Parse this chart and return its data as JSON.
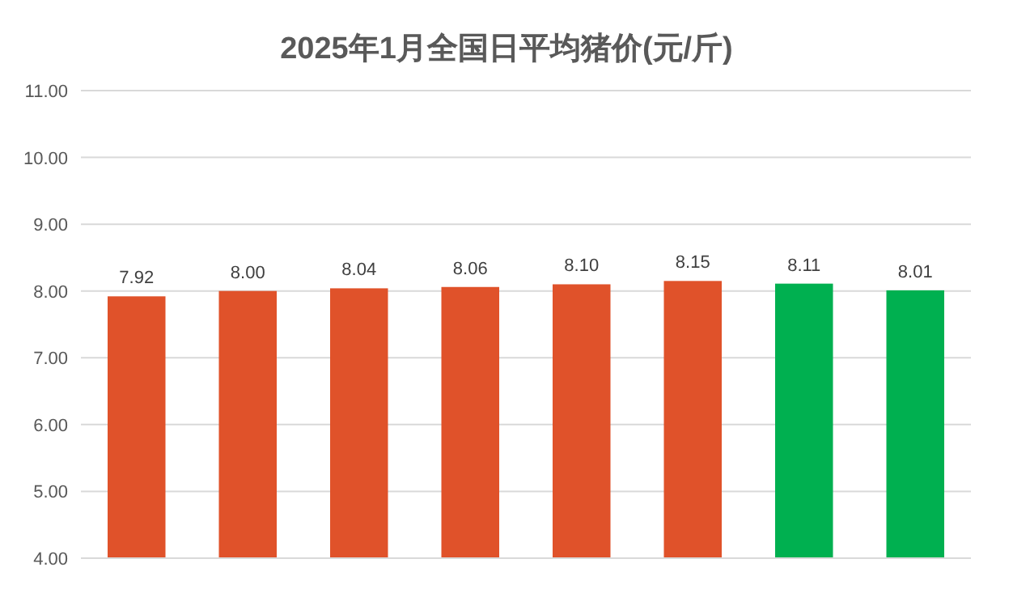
{
  "chart_data": {
    "type": "bar",
    "title": "2025年1月全国日平均猪价(元/斤)",
    "categories": [
      null,
      null,
      null,
      null,
      null,
      null,
      null,
      null
    ],
    "values": [
      7.92,
      8.0,
      8.04,
      8.06,
      8.1,
      8.15,
      8.11,
      8.01
    ],
    "colors": [
      "#e0522a",
      "#e0522a",
      "#e0522a",
      "#e0522a",
      "#e0522a",
      "#e0522a",
      "#00b050",
      "#00b050"
    ],
    "ylim": [
      4,
      11
    ],
    "yticks": [
      {
        "value": 4,
        "label": "4.00"
      },
      {
        "value": 5,
        "label": "5.00"
      },
      {
        "value": 6,
        "label": "6.00"
      },
      {
        "value": 7,
        "label": "7.00"
      },
      {
        "value": 8,
        "label": "8.00"
      },
      {
        "value": 9,
        "label": "9.00"
      },
      {
        "value": 10,
        "label": "10.00"
      },
      {
        "value": 11,
        "label": "11.00"
      }
    ],
    "value_labels": [
      "7.92",
      "8.00",
      "8.04",
      "8.06",
      "8.10",
      "8.15",
      "8.11",
      "8.01"
    ],
    "grid": "y"
  }
}
